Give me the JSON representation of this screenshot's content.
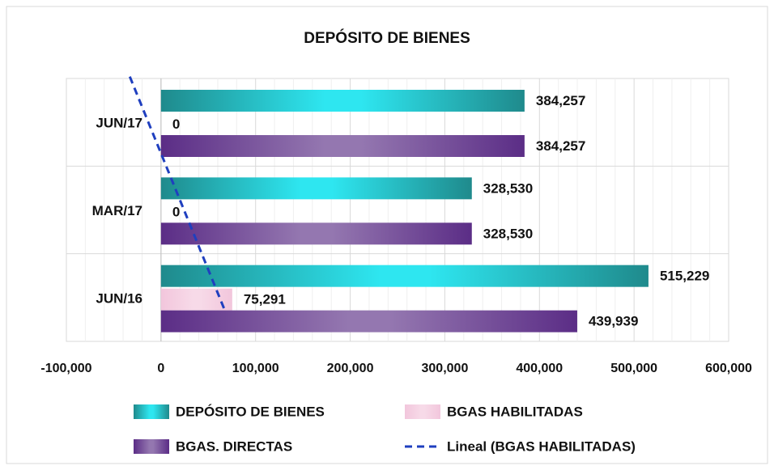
{
  "chart_data": {
    "type": "hbar",
    "title": "DEPÓSITO DE BIENES",
    "categories": [
      "JUN/16",
      "MAR/17",
      "JUN/17"
    ],
    "series": [
      {
        "name": "DEPÓSITO DE BIENES",
        "color": "#1f8a8c",
        "values": [
          515229,
          328530,
          384257
        ],
        "value_labels": [
          "515,229",
          "328,530",
          "384,257"
        ]
      },
      {
        "name": "BGAS HABILITADAS",
        "color": "#f2c6dc",
        "values": [
          75291,
          0,
          0
        ],
        "value_labels": [
          "75,291",
          "0",
          "0"
        ],
        "trendline": {
          "name": "Lineal (BGAS HABILITADAS)",
          "color": "#1f3fbf"
        }
      },
      {
        "name": "BGAS. DIRECTAS",
        "color": "#5b2d86",
        "values": [
          439939,
          328530,
          384257
        ],
        "value_labels": [
          "439,939",
          "328,530",
          "384,257"
        ]
      }
    ],
    "xlim": [
      -100000,
      600000
    ],
    "xticks": [
      {
        "value": -100000,
        "label": "-100,000"
      },
      0,
      {
        "value": 100000,
        "label": "100,000"
      },
      {
        "value": 200000,
        "label": "200,000"
      },
      {
        "value": 300000,
        "label": "300,000"
      },
      {
        "value": 400000,
        "label": "400,000"
      },
      {
        "value": 500000,
        "label": "500,000"
      },
      {
        "value": 600000,
        "label": "600,000"
      }
    ],
    "grid": true
  }
}
